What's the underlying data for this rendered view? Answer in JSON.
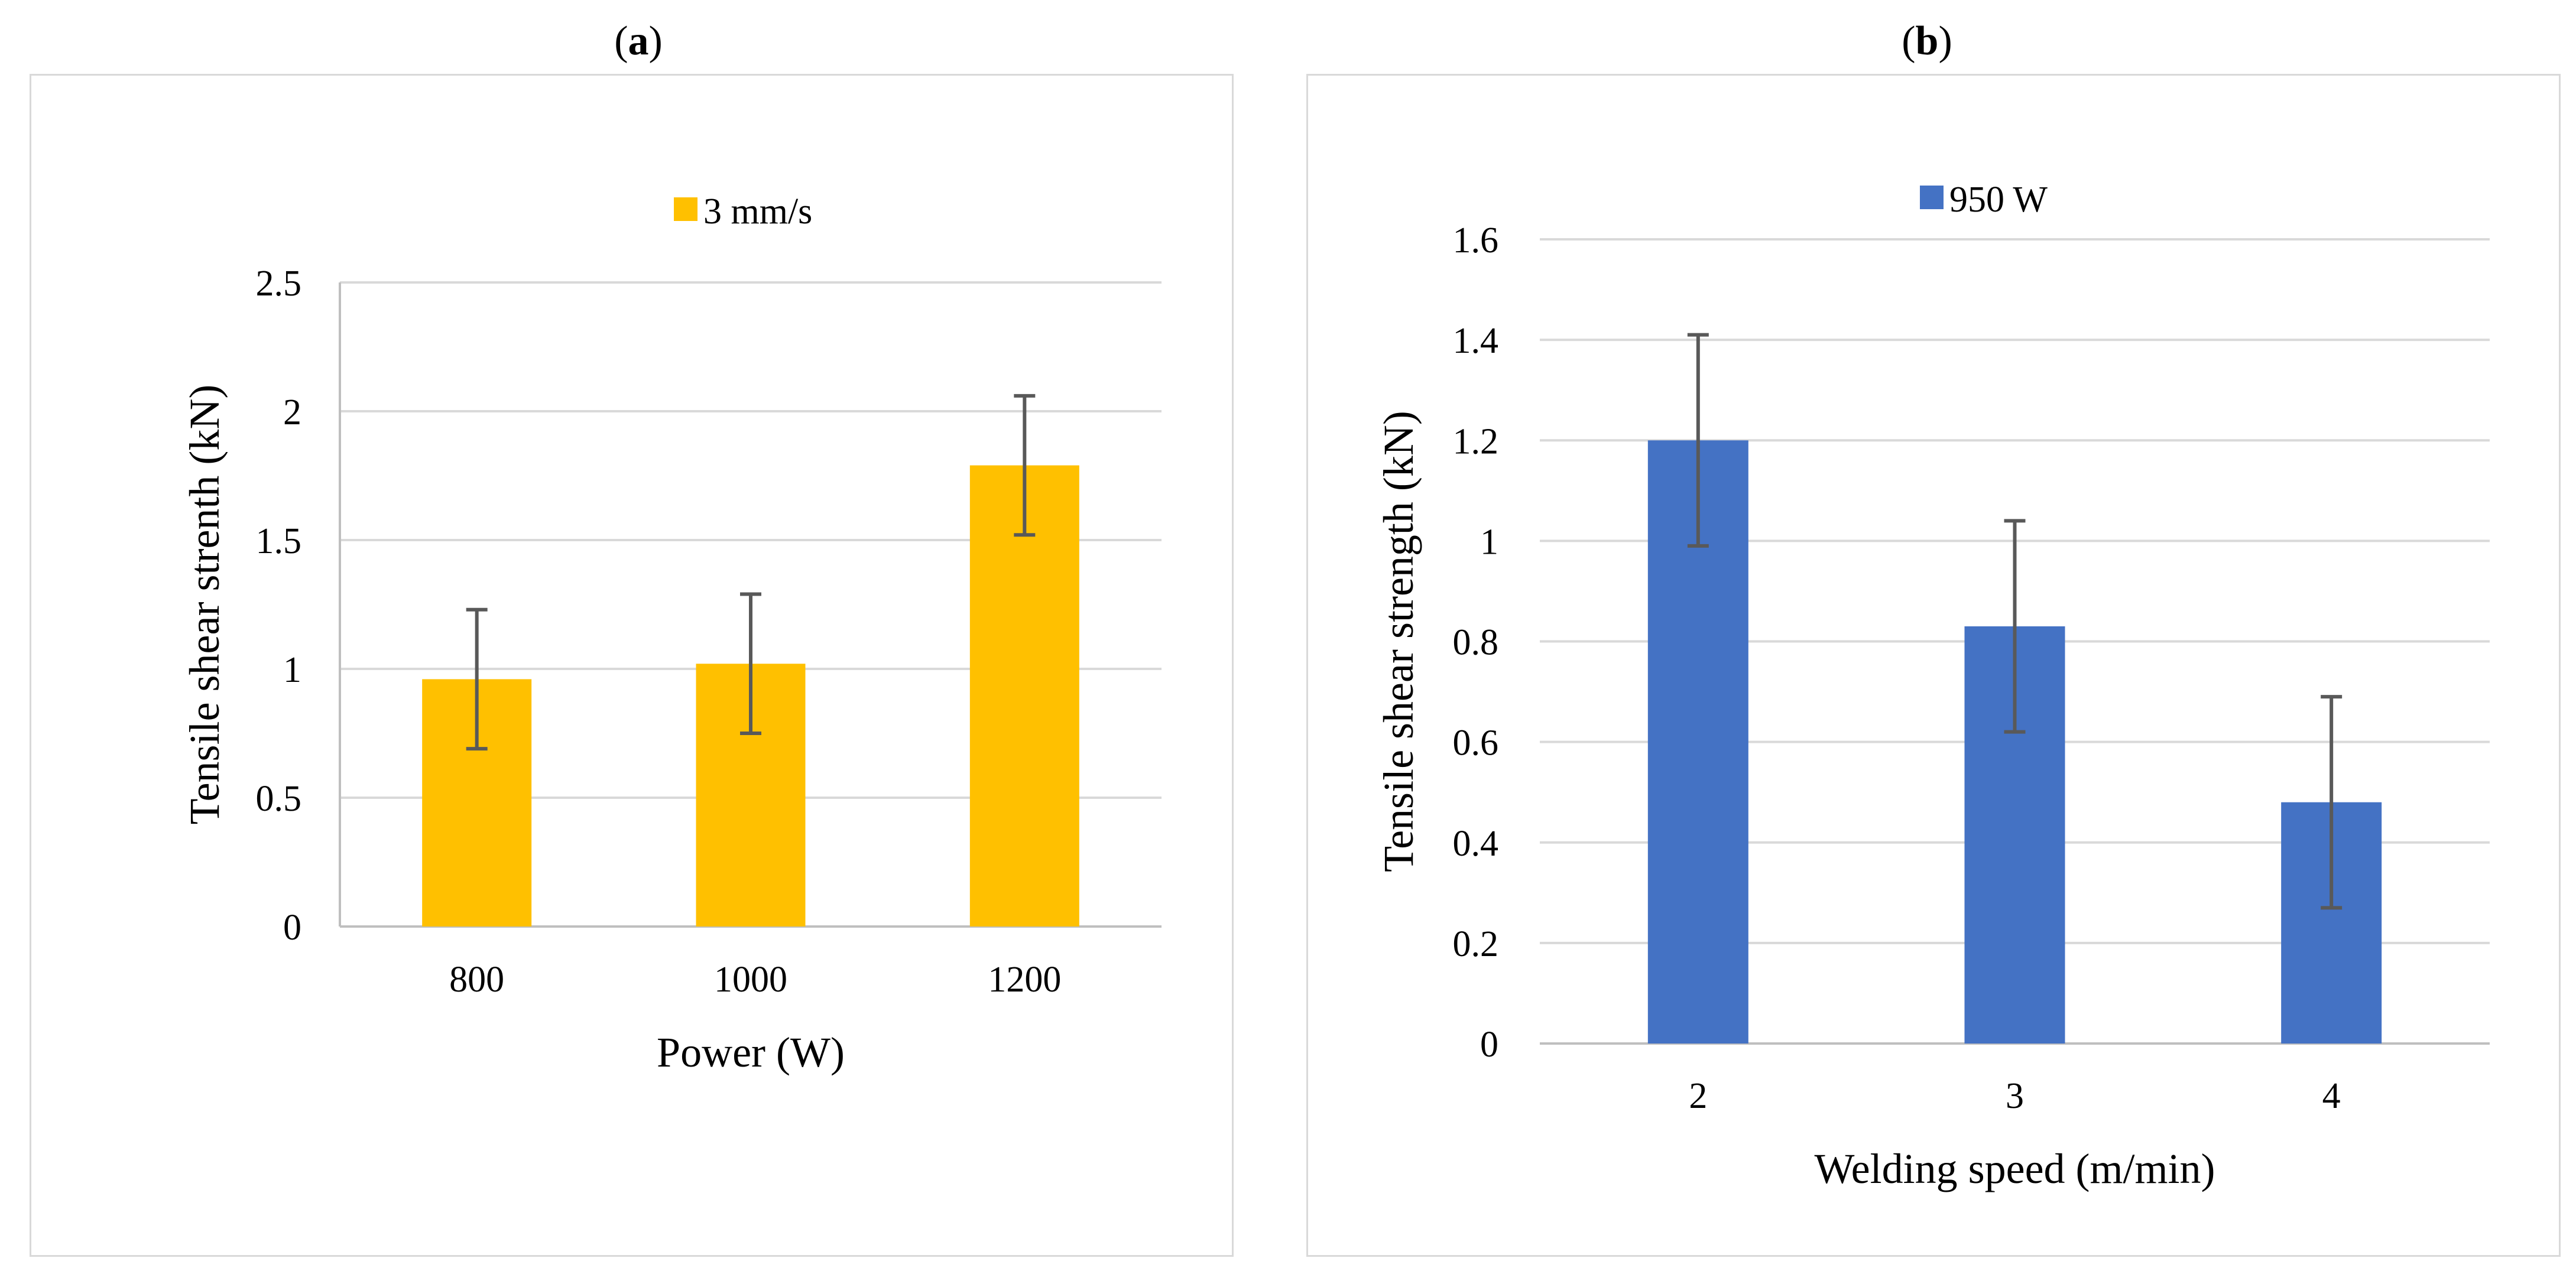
{
  "panels": [
    {
      "paren_open": "(",
      "letter": "a",
      "paren_close": ")"
    },
    {
      "paren_open": "(",
      "letter": "b",
      "paren_close": ")"
    }
  ],
  "chart_data": [
    {
      "type": "bar",
      "title": "",
      "categories": [
        "800",
        "1000",
        "1200"
      ],
      "series": [
        {
          "name": "3 mm/s",
          "values": [
            0.96,
            1.02,
            1.79
          ],
          "errors": [
            0.27,
            0.27,
            0.27
          ],
          "color": "#FFC000"
        }
      ],
      "xlabel": "Power (W)",
      "ylabel": "Tensile shear strenth (kN)",
      "ylim": [
        0,
        2.5
      ],
      "yticks": [
        "0",
        "0.5",
        "1",
        "1.5",
        "2",
        "2.5"
      ],
      "ytick_values": [
        0,
        0.5,
        1,
        1.5,
        2,
        2.5
      ],
      "grid": true,
      "legend": "top-center"
    },
    {
      "type": "bar",
      "title": "",
      "categories": [
        "2",
        "3",
        "4"
      ],
      "series": [
        {
          "name": "950 W",
          "values": [
            1.2,
            0.83,
            0.48
          ],
          "errors": [
            0.21,
            0.21,
            0.21
          ],
          "color": "#4472C4"
        }
      ],
      "xlabel": "Welding speed (m/min)",
      "ylabel": "Tensile shear strength (kN)",
      "ylim": [
        0,
        1.6
      ],
      "yticks": [
        "0",
        "0.2",
        "0.4",
        "0.6",
        "0.8",
        "1",
        "1.2",
        "1.4",
        "1.6"
      ],
      "ytick_values": [
        0,
        0.2,
        0.4,
        0.6,
        0.8,
        1,
        1.2,
        1.4,
        1.6
      ],
      "grid": true,
      "legend": "top-center"
    }
  ]
}
